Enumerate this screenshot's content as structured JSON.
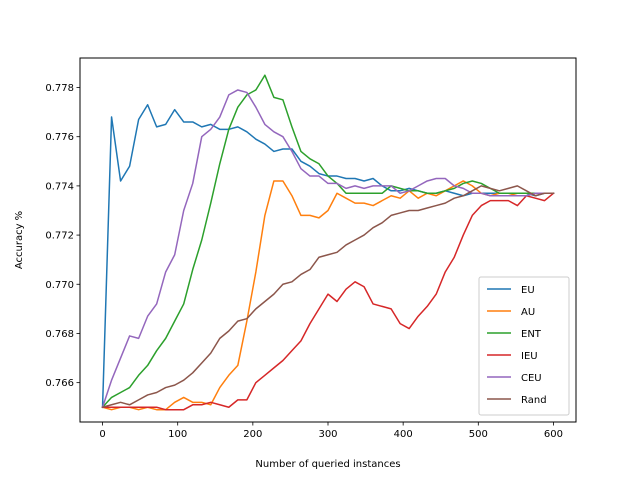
{
  "chart_data": {
    "type": "line",
    "title": "",
    "xlabel": "Number of queried instances",
    "ylabel": "Accuracy %",
    "xlim": [
      -30,
      630
    ],
    "ylim": [
      0.7644,
      0.7792
    ],
    "xticks": [
      0,
      100,
      200,
      300,
      400,
      500,
      600
    ],
    "yticks": [
      0.766,
      0.768,
      0.77,
      0.772,
      0.774,
      0.776,
      0.778
    ],
    "ytick_labels": [
      "0.766",
      "0.768",
      "0.770",
      "0.772",
      "0.774",
      "0.776",
      "0.778"
    ],
    "grid": false,
    "legend_position": "lower-right",
    "x": [
      0,
      12,
      24,
      36,
      48,
      60,
      72,
      84,
      96,
      108,
      120,
      132,
      144,
      156,
      168,
      180,
      192,
      204,
      216,
      228,
      240,
      252,
      264,
      276,
      288,
      300,
      312,
      324,
      336,
      348,
      360,
      372,
      384,
      396,
      408,
      420,
      432,
      444,
      456,
      468,
      480,
      492,
      504,
      516,
      528,
      540,
      552,
      564,
      576,
      588,
      600
    ],
    "series": [
      {
        "name": " EU",
        "color": "#1f77b4",
        "values": [
          0.765,
          0.7768,
          0.7742,
          0.7748,
          0.7767,
          0.7773,
          0.7764,
          0.7765,
          0.7771,
          0.7766,
          0.7766,
          0.7764,
          0.7765,
          0.7763,
          0.7763,
          0.7764,
          0.7762,
          0.7759,
          0.7757,
          0.7754,
          0.7755,
          0.7755,
          0.775,
          0.7748,
          0.7745,
          0.7744,
          0.7744,
          0.7743,
          0.7743,
          0.7742,
          0.7743,
          0.774,
          0.7738,
          0.7738,
          0.7739,
          0.7738,
          0.7737,
          0.7737,
          0.7738,
          0.7737,
          0.7736,
          0.7737,
          0.7737,
          0.7737,
          0.7737,
          0.7737,
          0.7737,
          0.7737,
          0.7736,
          0.7737,
          0.7737
        ]
      },
      {
        "name": " AU",
        "color": "#ff7f0e",
        "values": [
          0.765,
          0.7649,
          0.765,
          0.765,
          0.7649,
          0.765,
          0.7649,
          0.7649,
          0.7652,
          0.7654,
          0.7652,
          0.7652,
          0.7651,
          0.7658,
          0.7663,
          0.7667,
          0.7685,
          0.7705,
          0.7728,
          0.7742,
          0.7742,
          0.7736,
          0.7728,
          0.7728,
          0.7727,
          0.773,
          0.7737,
          0.7735,
          0.7733,
          0.7733,
          0.7732,
          0.7734,
          0.7736,
          0.7735,
          0.7738,
          0.7735,
          0.7737,
          0.7736,
          0.7738,
          0.774,
          0.7742,
          0.774,
          0.7737,
          0.7736,
          0.7737,
          0.7737,
          0.7736,
          0.7736,
          0.7737,
          0.7737,
          0.7737
        ]
      },
      {
        "name": " ENT",
        "color": "#2ca02c",
        "values": [
          0.765,
          0.7654,
          0.7656,
          0.7658,
          0.7663,
          0.7667,
          0.7673,
          0.7678,
          0.7685,
          0.7692,
          0.7706,
          0.7718,
          0.7733,
          0.7749,
          0.7763,
          0.7772,
          0.7777,
          0.7779,
          0.7785,
          0.7776,
          0.7775,
          0.7764,
          0.7754,
          0.7751,
          0.7749,
          0.7744,
          0.7741,
          0.7737,
          0.7737,
          0.7737,
          0.7737,
          0.7737,
          0.774,
          0.7739,
          0.7738,
          0.7738,
          0.7737,
          0.7737,
          0.7738,
          0.7739,
          0.7741,
          0.7742,
          0.7741,
          0.7739,
          0.7737,
          0.7737,
          0.7737,
          0.7737,
          0.7737,
          0.7737,
          0.7737
        ]
      },
      {
        "name": " IEU",
        "color": "#d62728",
        "values": [
          0.765,
          0.765,
          0.765,
          0.765,
          0.765,
          0.765,
          0.765,
          0.7649,
          0.7649,
          0.7649,
          0.7651,
          0.7651,
          0.7652,
          0.7651,
          0.765,
          0.7653,
          0.7653,
          0.766,
          0.7663,
          0.7666,
          0.7669,
          0.7673,
          0.7677,
          0.7684,
          0.769,
          0.7696,
          0.7693,
          0.7698,
          0.7701,
          0.7699,
          0.7692,
          0.7691,
          0.769,
          0.7684,
          0.7682,
          0.7687,
          0.7691,
          0.7696,
          0.7705,
          0.7711,
          0.772,
          0.7728,
          0.7732,
          0.7734,
          0.7734,
          0.7734,
          0.7732,
          0.7736,
          0.7735,
          0.7734,
          0.7737
        ]
      },
      {
        "name": " CEU",
        "color": "#9467bd",
        "values": [
          0.765,
          0.7661,
          0.767,
          0.7679,
          0.7678,
          0.7687,
          0.7692,
          0.7705,
          0.7712,
          0.773,
          0.7741,
          0.776,
          0.7763,
          0.7768,
          0.7777,
          0.7779,
          0.7778,
          0.7772,
          0.7765,
          0.7762,
          0.776,
          0.7754,
          0.7747,
          0.7744,
          0.7744,
          0.7741,
          0.7741,
          0.7739,
          0.774,
          0.7739,
          0.774,
          0.774,
          0.774,
          0.7737,
          0.7738,
          0.774,
          0.7742,
          0.7743,
          0.7743,
          0.774,
          0.7739,
          0.7737,
          0.7737,
          0.7736,
          0.7736,
          0.7736,
          0.7736,
          0.7736,
          0.7737,
          0.7737,
          0.7737
        ]
      },
      {
        "name": " Rand",
        "color": "#8c564b",
        "values": [
          0.765,
          0.7651,
          0.7652,
          0.7651,
          0.7653,
          0.7655,
          0.7656,
          0.7658,
          0.7659,
          0.7661,
          0.7664,
          0.7668,
          0.7672,
          0.7678,
          0.7681,
          0.7685,
          0.7686,
          0.769,
          0.7693,
          0.7696,
          0.77,
          0.7701,
          0.7704,
          0.7706,
          0.7711,
          0.7712,
          0.7713,
          0.7716,
          0.7718,
          0.772,
          0.7723,
          0.7725,
          0.7728,
          0.7729,
          0.773,
          0.773,
          0.7731,
          0.7732,
          0.7733,
          0.7735,
          0.7736,
          0.7738,
          0.774,
          0.7739,
          0.7738,
          0.7739,
          0.774,
          0.7738,
          0.7736,
          0.7737,
          0.7737
        ]
      }
    ]
  }
}
